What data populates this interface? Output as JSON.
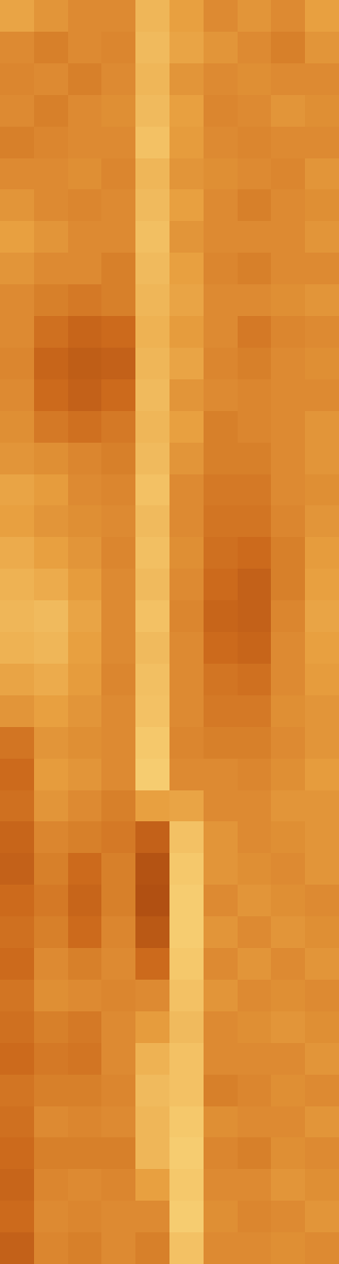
{
  "chart_data": {
    "type": "heatmap",
    "tick_labels": false,
    "zlim": [
      0,
      1
    ],
    "values": [
      [
        0.62,
        0.55,
        0.5,
        0.5,
        0.7,
        0.6,
        0.5,
        0.55,
        0.5,
        0.6
      ],
      [
        0.5,
        0.45,
        0.5,
        0.48,
        0.72,
        0.62,
        0.55,
        0.5,
        0.45,
        0.55
      ],
      [
        0.48,
        0.5,
        0.45,
        0.5,
        0.7,
        0.55,
        0.5,
        0.52,
        0.5,
        0.5
      ],
      [
        0.5,
        0.45,
        0.5,
        0.52,
        0.72,
        0.6,
        0.48,
        0.5,
        0.55,
        0.52
      ],
      [
        0.45,
        0.48,
        0.5,
        0.5,
        0.75,
        0.58,
        0.5,
        0.48,
        0.5,
        0.5
      ],
      [
        0.5,
        0.5,
        0.52,
        0.48,
        0.7,
        0.55,
        0.52,
        0.5,
        0.48,
        0.55
      ],
      [
        0.55,
        0.5,
        0.48,
        0.5,
        0.72,
        0.6,
        0.5,
        0.45,
        0.5,
        0.52
      ],
      [
        0.6,
        0.55,
        0.5,
        0.5,
        0.74,
        0.55,
        0.5,
        0.5,
        0.5,
        0.55
      ],
      [
        0.55,
        0.5,
        0.5,
        0.45,
        0.72,
        0.6,
        0.48,
        0.45,
        0.5,
        0.5
      ],
      [
        0.5,
        0.45,
        0.42,
        0.45,
        0.7,
        0.62,
        0.5,
        0.5,
        0.52,
        0.55
      ],
      [
        0.5,
        0.38,
        0.32,
        0.35,
        0.68,
        0.58,
        0.5,
        0.42,
        0.48,
        0.5
      ],
      [
        0.48,
        0.32,
        0.28,
        0.3,
        0.7,
        0.62,
        0.48,
        0.45,
        0.5,
        0.52
      ],
      [
        0.5,
        0.35,
        0.3,
        0.35,
        0.72,
        0.55,
        0.5,
        0.48,
        0.5,
        0.5
      ],
      [
        0.52,
        0.42,
        0.38,
        0.42,
        0.7,
        0.6,
        0.45,
        0.48,
        0.5,
        0.55
      ],
      [
        0.55,
        0.52,
        0.48,
        0.45,
        0.72,
        0.55,
        0.45,
        0.45,
        0.5,
        0.55
      ],
      [
        0.62,
        0.58,
        0.5,
        0.48,
        0.75,
        0.5,
        0.42,
        0.42,
        0.5,
        0.52
      ],
      [
        0.6,
        0.55,
        0.52,
        0.5,
        0.72,
        0.5,
        0.4,
        0.4,
        0.48,
        0.55
      ],
      [
        0.65,
        0.6,
        0.55,
        0.48,
        0.74,
        0.52,
        0.38,
        0.35,
        0.45,
        0.58
      ],
      [
        0.68,
        0.65,
        0.58,
        0.5,
        0.72,
        0.5,
        0.35,
        0.3,
        0.45,
        0.6
      ],
      [
        0.7,
        0.72,
        0.62,
        0.5,
        0.75,
        0.48,
        0.32,
        0.3,
        0.48,
        0.62
      ],
      [
        0.68,
        0.7,
        0.6,
        0.5,
        0.72,
        0.5,
        0.35,
        0.32,
        0.5,
        0.6
      ],
      [
        0.62,
        0.65,
        0.58,
        0.48,
        0.74,
        0.5,
        0.4,
        0.38,
        0.5,
        0.58
      ],
      [
        0.55,
        0.6,
        0.55,
        0.5,
        0.75,
        0.5,
        0.42,
        0.42,
        0.52,
        0.55
      ],
      [
        0.4,
        0.55,
        0.52,
        0.5,
        0.78,
        0.48,
        0.45,
        0.45,
        0.5,
        0.55
      ],
      [
        0.35,
        0.58,
        0.55,
        0.5,
        0.8,
        0.5,
        0.5,
        0.48,
        0.52,
        0.58
      ],
      [
        0.38,
        0.55,
        0.5,
        0.45,
        0.6,
        0.62,
        0.5,
        0.5,
        0.55,
        0.55
      ],
      [
        0.32,
        0.48,
        0.45,
        0.42,
        0.3,
        0.75,
        0.55,
        0.5,
        0.52,
        0.55
      ],
      [
        0.3,
        0.45,
        0.35,
        0.45,
        0.22,
        0.78,
        0.55,
        0.52,
        0.5,
        0.55
      ],
      [
        0.35,
        0.42,
        0.32,
        0.45,
        0.2,
        0.8,
        0.5,
        0.55,
        0.52,
        0.5
      ],
      [
        0.38,
        0.45,
        0.35,
        0.48,
        0.25,
        0.8,
        0.55,
        0.5,
        0.55,
        0.52
      ],
      [
        0.35,
        0.5,
        0.45,
        0.5,
        0.35,
        0.78,
        0.5,
        0.55,
        0.5,
        0.55
      ],
      [
        0.4,
        0.52,
        0.5,
        0.48,
        0.5,
        0.75,
        0.55,
        0.5,
        0.52,
        0.5
      ],
      [
        0.38,
        0.45,
        0.42,
        0.5,
        0.58,
        0.72,
        0.5,
        0.52,
        0.55,
        0.52
      ],
      [
        0.35,
        0.42,
        0.4,
        0.5,
        0.68,
        0.75,
        0.5,
        0.5,
        0.5,
        0.55
      ],
      [
        0.4,
        0.45,
        0.45,
        0.48,
        0.72,
        0.75,
        0.45,
        0.48,
        0.52,
        0.5
      ],
      [
        0.38,
        0.5,
        0.48,
        0.5,
        0.7,
        0.78,
        0.52,
        0.5,
        0.5,
        0.55
      ],
      [
        0.35,
        0.45,
        0.45,
        0.45,
        0.7,
        0.8,
        0.48,
        0.45,
        0.52,
        0.5
      ],
      [
        0.32,
        0.48,
        0.5,
        0.48,
        0.6,
        0.78,
        0.5,
        0.5,
        0.55,
        0.52
      ],
      [
        0.35,
        0.5,
        0.48,
        0.5,
        0.5,
        0.8,
        0.52,
        0.48,
        0.5,
        0.55
      ],
      [
        0.3,
        0.48,
        0.45,
        0.5,
        0.45,
        0.75,
        0.5,
        0.5,
        0.52,
        0.5
      ]
    ]
  }
}
